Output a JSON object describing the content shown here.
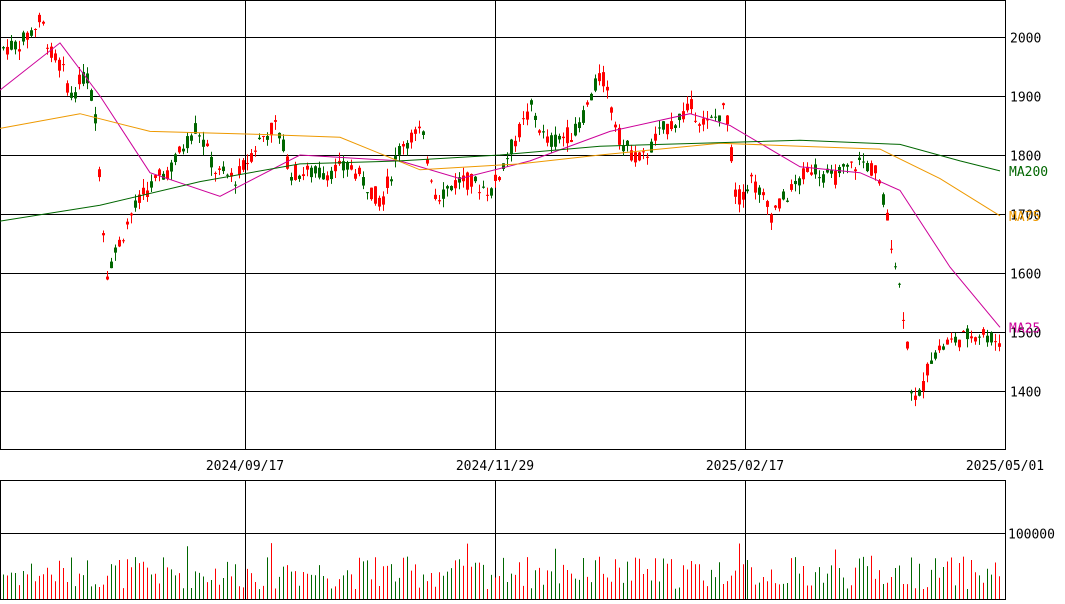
{
  "chart_data": {
    "type": "candlestick",
    "price_axis": {
      "ticks": [
        1400,
        1500,
        1600,
        1700,
        1800,
        1900,
        2000
      ],
      "tick_labels": [
        "1400",
        "1500",
        "1600",
        "1700",
        "1800",
        "1900",
        "2000"
      ],
      "ylim": [
        1300,
        2060
      ]
    },
    "volume_axis": {
      "ticks": [
        100000
      ],
      "tick_labels": [
        "100000"
      ],
      "ylim": [
        0,
        120000
      ]
    },
    "date_axis": {
      "labels": [
        "2024/09/17",
        "2024/11/29",
        "2025/02/17",
        "2025/05/01"
      ]
    },
    "series": [
      {
        "name": "MA25",
        "color": "#cc0099",
        "last": 1508
      },
      {
        "name": "MA75",
        "color": "#ee9900",
        "last": 1697
      },
      {
        "name": "MA200",
        "color": "#006600",
        "last": 1773
      }
    ],
    "colors": {
      "up": "#006600",
      "down": "#ff0000",
      "grid": "#000000"
    },
    "grid": true
  }
}
